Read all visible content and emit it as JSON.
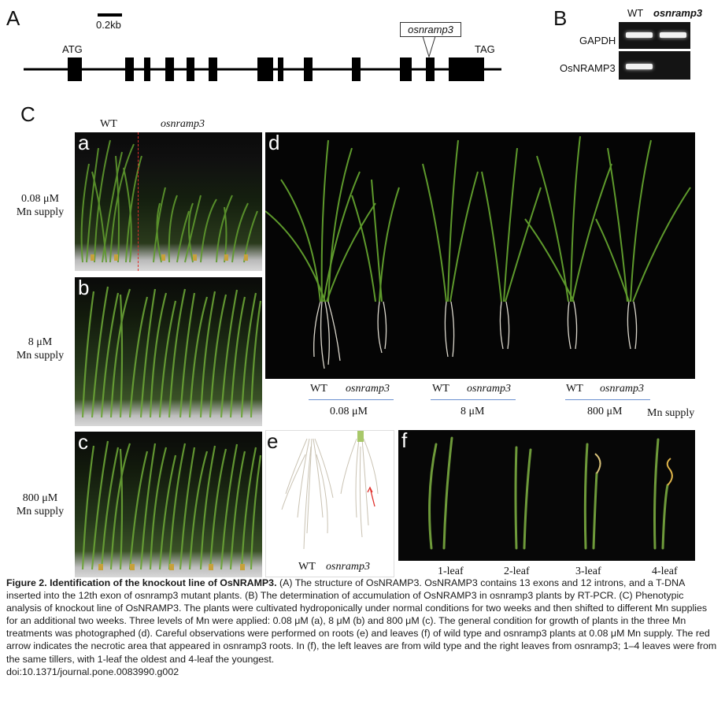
{
  "panelA": {
    "letter": "A",
    "scale_label": "0.2kb",
    "atg": "ATG",
    "tag": "TAG",
    "insert_label": "osnramp3"
  },
  "panelB": {
    "letter": "B",
    "col_wt": "WT",
    "col_mut": "osnramp3",
    "row1": "GAPDH",
    "row2": "OsNRAMP3"
  },
  "panelC": {
    "letter": "C",
    "top_wt": "WT",
    "top_mut": "osnramp3",
    "a": "a",
    "b": "b",
    "c": "c",
    "d": "d",
    "e": "e",
    "f": "f",
    "row_a_conc": "0.08 μM",
    "row_a_unit": "Mn supply",
    "row_b_conc": "8 μM",
    "row_b_unit": "Mn supply",
    "row_c_conc": "800 μM",
    "row_c_unit": "Mn supply",
    "d_groups": [
      {
        "wt": "WT",
        "mut": "osnramp3",
        "conc": "0.08 μM"
      },
      {
        "wt": "WT",
        "mut": "osnramp3",
        "conc": "8 μM"
      },
      {
        "wt": "WT",
        "mut": "osnramp3",
        "conc": "800 μM"
      }
    ],
    "d_unit": "Mn supply",
    "e_wt": "WT",
    "e_mut": "osnramp3",
    "f_labels": [
      "1-leaf",
      "2-leaf",
      "3-leaf",
      "4-leaf"
    ]
  },
  "caption": {
    "title": "Figure 2. Identification of the knockout line of OsNRAMP3.",
    "body": "(A) The structure of OsNRAMP3. OsNRAMP3 contains 13 exons and 12 introns, and a T-DNA inserted into the 12th exon of osnramp3 mutant plants. (B) The determination of accumulation of OsNRAMP3 in osnramp3 plants by RT-PCR. (C) Phenotypic analysis of knockout line of OsNRAMP3. The plants were cultivated hydroponically under normal conditions for two weeks and then shifted to different Mn supplies for an additional two weeks. Three levels of Mn were applied: 0.08 μM (a), 8 μM (b) and 800 μM (c). The general condition for growth of plants in the three Mn treatments was photographed (d). Careful observations were performed on roots (e) and leaves (f) of wild type and osnramp3 plants at 0.08 μM Mn supply. The red arrow indicates the necrotic area that appeared in osnramp3 roots. In (f), the left leaves are from wild type and the right leaves from osnramp3; 1–4 leaves were from the same tillers, with 1-leaf the oldest and 4-leaf the youngest.",
    "doi": "doi:10.1371/journal.pone.0083990.g002"
  }
}
